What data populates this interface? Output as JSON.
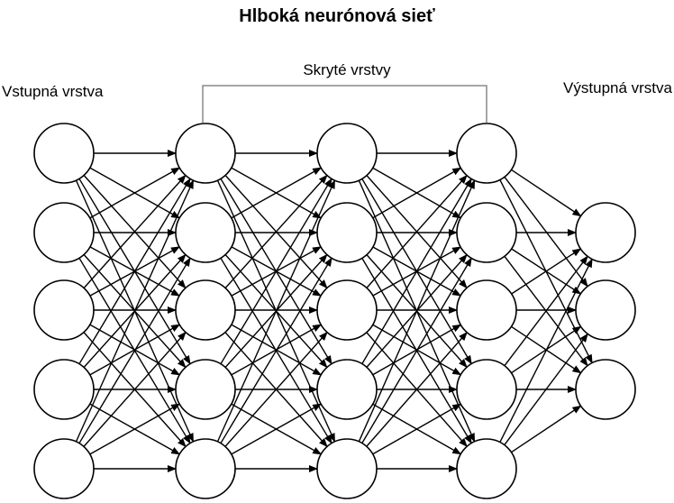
{
  "title": "Hlboká neurónová sieť",
  "labels": {
    "input_layer": "Vstupná vrstva",
    "hidden_layers": "Skryté vrstvy",
    "output_layer": "Výstupná vrstva"
  },
  "layers": [
    {
      "role": "input",
      "neurons": 5
    },
    {
      "role": "hidden",
      "neurons": 5
    },
    {
      "role": "hidden",
      "neurons": 5
    },
    {
      "role": "hidden",
      "neurons": 5
    },
    {
      "role": "output",
      "neurons": 3
    }
  ],
  "connectivity": "fully-connected",
  "colors": {
    "stroke": "#000000",
    "bracket": "#888888",
    "background": "#ffffff"
  }
}
